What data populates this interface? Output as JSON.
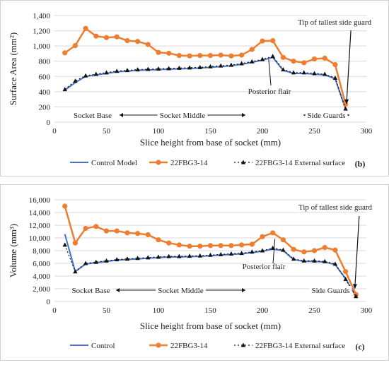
{
  "colors": {
    "control": "#4472c4",
    "fbg": "#ed7d31",
    "external": "#111111",
    "grid": "#d9d9d9"
  },
  "chart_data": [
    {
      "type": "line",
      "panel_label": "(b)",
      "xlabel": "Slice height from base of socket (mm)",
      "ylabel": "Surface Area (mm²)",
      "xlim": [
        0,
        300
      ],
      "ylim": [
        0,
        1400
      ],
      "xticks": [
        "0",
        "50",
        "100",
        "150",
        "200",
        "250",
        "300"
      ],
      "yticks": [
        "0",
        "200",
        "400",
        "600",
        "800",
        "1,000",
        "1,200",
        "1,400"
      ],
      "grid": true,
      "legend_position": "bottom",
      "series": [
        {
          "name": "Control Model",
          "x": [
            10,
            20,
            30,
            40,
            50,
            60,
            70,
            80,
            90,
            100,
            110,
            120,
            130,
            140,
            150,
            160,
            170,
            180,
            190,
            200,
            210,
            220,
            230,
            240,
            250,
            260,
            270,
            280
          ],
          "values": [
            420,
            520,
            600,
            620,
            640,
            660,
            670,
            680,
            685,
            690,
            695,
            700,
            705,
            710,
            720,
            730,
            740,
            760,
            785,
            815,
            850,
            680,
            640,
            640,
            630,
            620,
            570,
            170
          ]
        },
        {
          "name": "22FBG3-14",
          "x": [
            10,
            20,
            30,
            40,
            50,
            60,
            70,
            80,
            90,
            100,
            110,
            120,
            130,
            140,
            150,
            160,
            170,
            180,
            190,
            200,
            210,
            220,
            230,
            240,
            250,
            260,
            270,
            280
          ],
          "values": [
            910,
            1005,
            1230,
            1130,
            1110,
            1120,
            1070,
            1060,
            1020,
            915,
            905,
            875,
            870,
            875,
            875,
            880,
            870,
            880,
            955,
            1065,
            1070,
            850,
            800,
            780,
            830,
            840,
            755,
            235
          ]
        },
        {
          "name": "22FBG3-14 External surface",
          "x": [
            10,
            20,
            30,
            40,
            50,
            60,
            70,
            80,
            90,
            100,
            110,
            120,
            130,
            140,
            150,
            160,
            170,
            180,
            190,
            200,
            210,
            220,
            230,
            240,
            250,
            260,
            270,
            280
          ],
          "values": [
            430,
            540,
            610,
            630,
            650,
            670,
            680,
            690,
            695,
            700,
            705,
            710,
            715,
            720,
            730,
            740,
            750,
            770,
            795,
            825,
            865,
            690,
            650,
            650,
            640,
            630,
            580,
            175
          ]
        }
      ],
      "annotations": {
        "tip": "Tip of tallest side guard",
        "posterior": "Posterior flair",
        "socket_base": "Socket Base",
        "socket_middle": "Socket Middle",
        "side_guards": "Side Guards"
      }
    },
    {
      "type": "line",
      "panel_label": "(c)",
      "xlabel": "Slice height from base of socket (mm)",
      "ylabel": "Volume (mm³)",
      "xlim": [
        0,
        300
      ],
      "ylim": [
        0,
        16000
      ],
      "xticks": [
        "0",
        "50",
        "100",
        "150",
        "200",
        "250",
        "300"
      ],
      "yticks": [
        "0",
        "2,000",
        "4,000",
        "6,000",
        "8,000",
        "10,000",
        "12,000",
        "14,000",
        "16,000"
      ],
      "grid": true,
      "legend_position": "bottom",
      "series": [
        {
          "name": "Control",
          "x": [
            10,
            20,
            30,
            40,
            50,
            60,
            70,
            80,
            90,
            100,
            110,
            120,
            130,
            140,
            150,
            160,
            170,
            180,
            190,
            200,
            210,
            220,
            230,
            240,
            250,
            260,
            270,
            280,
            290
          ],
          "values": [
            10600,
            4700,
            5900,
            6100,
            6300,
            6500,
            6600,
            6700,
            6800,
            6900,
            7000,
            7000,
            7050,
            7100,
            7200,
            7300,
            7400,
            7500,
            7700,
            7900,
            8250,
            8000,
            6600,
            6300,
            6300,
            6200,
            5800,
            3600,
            800
          ]
        },
        {
          "name": "22FBG3-14",
          "x": [
            10,
            20,
            30,
            40,
            50,
            60,
            70,
            80,
            90,
            100,
            110,
            120,
            130,
            140,
            150,
            160,
            170,
            180,
            190,
            200,
            210,
            220,
            230,
            240,
            250,
            260,
            270,
            280,
            290
          ],
          "values": [
            15000,
            9200,
            11500,
            11800,
            11100,
            11100,
            10800,
            10700,
            10500,
            9700,
            9200,
            8900,
            8700,
            8700,
            8800,
            8800,
            8800,
            8900,
            9000,
            10200,
            10800,
            9700,
            8200,
            7800,
            8000,
            8500,
            8100,
            4700,
            1100
          ]
        },
        {
          "name": "22FBG3-14 External surface",
          "x": [
            10,
            20,
            30,
            40,
            50,
            60,
            70,
            80,
            90,
            100,
            110,
            120,
            130,
            140,
            150,
            160,
            170,
            180,
            190,
            200,
            210,
            220,
            230,
            240,
            250,
            260,
            270,
            280,
            290
          ],
          "values": [
            8900,
            4700,
            6000,
            6200,
            6400,
            6600,
            6700,
            6800,
            6900,
            7000,
            7100,
            7100,
            7150,
            7200,
            7300,
            7400,
            7500,
            7600,
            7800,
            8000,
            8400,
            8100,
            6700,
            6400,
            6400,
            6300,
            5900,
            3500,
            800
          ]
        }
      ],
      "annotations": {
        "tip": "Tip of tallest side guard",
        "posterior": "Posterior flair",
        "socket_base": "Socket Base",
        "socket_middle": "Socket Middle",
        "side_guards": "Side Guards"
      }
    }
  ]
}
